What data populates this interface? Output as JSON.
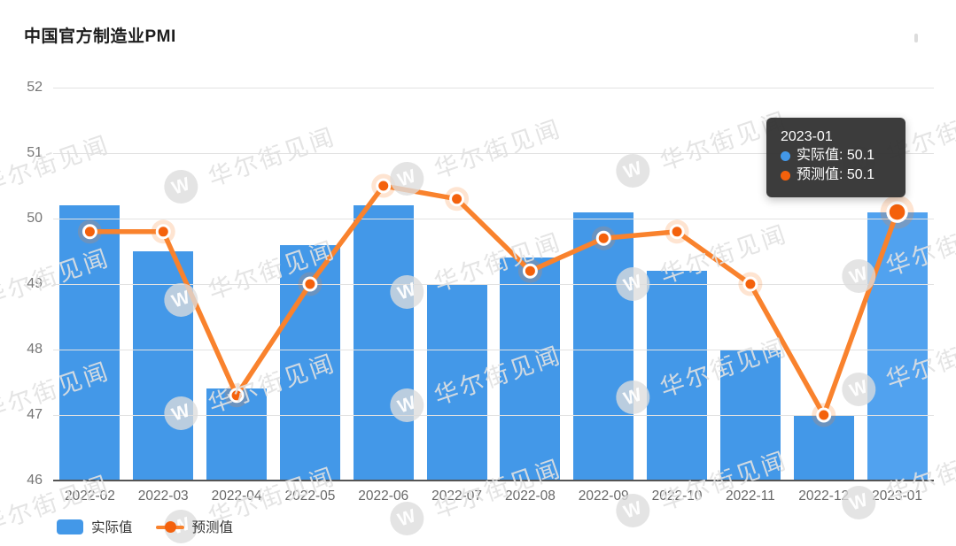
{
  "title": "中国官方制造业PMI",
  "watermark": {
    "text": "华尔街见闻",
    "logo_letter": "W"
  },
  "colors": {
    "bar": "#4398e8",
    "bar_highlight": "#51a2ef",
    "line": "#f9822d",
    "marker": "#f4610c",
    "grid": "#e2e2e2",
    "axis": "#545454",
    "tooltip_bg": "rgba(50,50,50,0.95)"
  },
  "chart_data": {
    "type": "bar",
    "title": "中国官方制造业PMI",
    "categories": [
      "2022-02",
      "2022-03",
      "2022-04",
      "2022-05",
      "2022-06",
      "2022-07",
      "2022-08",
      "2022-09",
      "2022-10",
      "2022-11",
      "2022-12",
      "2023-01"
    ],
    "series": [
      {
        "name": "实际值",
        "type": "bar",
        "color": "#4398e8",
        "values": [
          50.2,
          49.5,
          47.4,
          49.6,
          50.2,
          49.0,
          49.4,
          50.1,
          49.2,
          48.0,
          47.0,
          50.1
        ]
      },
      {
        "name": "预测值",
        "type": "line",
        "color": "#f9822d",
        "values": [
          49.8,
          49.8,
          47.3,
          49.0,
          50.5,
          50.3,
          49.2,
          49.7,
          49.8,
          49.0,
          47.0,
          50.1
        ]
      }
    ],
    "ylim": [
      46,
      52
    ],
    "y_ticks": [
      46,
      47,
      48,
      49,
      50,
      51,
      52
    ],
    "grid": true,
    "legend_position": "bottom-left",
    "highlighted_index": 11
  },
  "tooltip": {
    "title": "2023-01",
    "rows": [
      {
        "text": "实际值: 50.1",
        "color": "#4398e8"
      },
      {
        "text": "预测值: 50.1",
        "color": "#f4610c"
      }
    ]
  }
}
